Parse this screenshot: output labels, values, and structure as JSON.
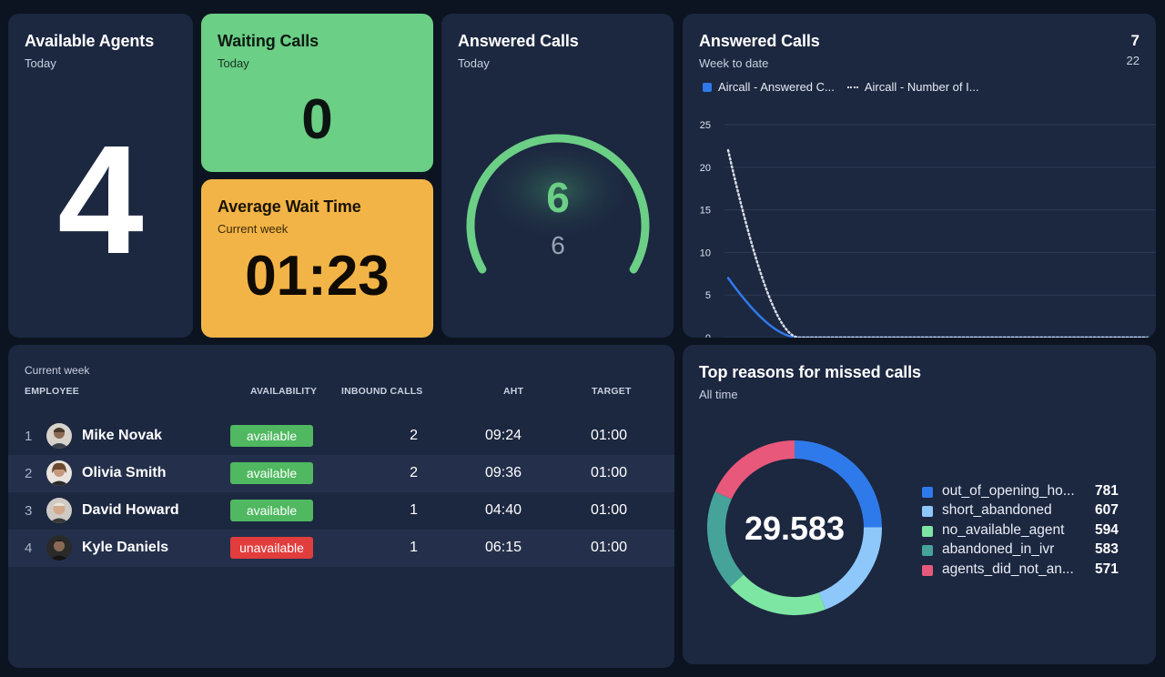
{
  "available_agents": {
    "title": "Available Agents",
    "subtitle": "Today",
    "value": "4"
  },
  "waiting_calls": {
    "title": "Waiting Calls",
    "subtitle": "Today",
    "value": "0",
    "bg_color": "#6bcf86"
  },
  "average_wait_time": {
    "title": "Average Wait Time",
    "subtitle": "Current week",
    "value": "01:23",
    "bg_color": "#f3b447"
  },
  "answered_today": {
    "title": "Answered Calls",
    "subtitle": "Today",
    "value": "6",
    "target": "6",
    "progress": 1.0,
    "color": "#6bcf86"
  },
  "answered_week": {
    "title": "Answered Calls",
    "subtitle": "Week to date",
    "primary_value": "7",
    "secondary_value": "22",
    "legend": [
      {
        "label": "Aircall - Answered C...",
        "style": "solid",
        "color": "#2f7aea"
      },
      {
        "label": "Aircall - Number of I...",
        "style": "dotted",
        "color": "#d8dce6"
      }
    ]
  },
  "chart_data": {
    "type": "line",
    "x": [
      0,
      1,
      2,
      3,
      4,
      5,
      6
    ],
    "ylim": [
      0,
      25
    ],
    "yticks": [
      "0",
      "5",
      "10",
      "15",
      "20",
      "25"
    ],
    "grid": true,
    "legend_placement": "top-left",
    "series": [
      {
        "name": "Aircall - Answered C...",
        "style": "solid",
        "color": "#2f7aea",
        "values": [
          7,
          0,
          0,
          0,
          0,
          0,
          0
        ]
      },
      {
        "name": "Aircall - Number of I...",
        "style": "dotted",
        "color": "#d8dce6",
        "values": [
          22,
          0,
          0,
          0,
          0,
          0,
          0
        ]
      }
    ]
  },
  "agent_table": {
    "period": "Current week",
    "headers": {
      "employee": "EMPLOYEE",
      "availability": "AVAILABILITY",
      "inbound": "INBOUND CALLS",
      "aht": "AHT",
      "target": "TARGET"
    },
    "rows": [
      {
        "index": "1",
        "name": "Mike Novak",
        "availability": "available",
        "status": "ok",
        "inbound": "2",
        "aht": "09:24",
        "target": "01:00"
      },
      {
        "index": "2",
        "name": "Olivia Smith",
        "availability": "available",
        "status": "ok",
        "inbound": "2",
        "aht": "09:36",
        "target": "01:00"
      },
      {
        "index": "3",
        "name": "David Howard",
        "availability": "available",
        "status": "ok",
        "inbound": "1",
        "aht": "04:40",
        "target": "01:00"
      },
      {
        "index": "4",
        "name": "Kyle Daniels",
        "availability": "unavailable",
        "status": "bad",
        "inbound": "1",
        "aht": "06:15",
        "target": "01:00"
      }
    ]
  },
  "missed_calls": {
    "title": "Top reasons for missed calls",
    "subtitle": "All time",
    "total": "29.583",
    "items": [
      {
        "label": "out_of_opening_ho...",
        "value": "781",
        "count": 781,
        "color": "#2f7aea"
      },
      {
        "label": "short_abandoned",
        "value": "607",
        "count": 607,
        "color": "#8ec8fb"
      },
      {
        "label": "no_available_agent",
        "value": "594",
        "count": 594,
        "color": "#7ee6a3"
      },
      {
        "label": "abandoned_in_ivr",
        "value": "583",
        "count": 583,
        "color": "#46a39a"
      },
      {
        "label": "agents_did_not_an...",
        "value": "571",
        "count": 571,
        "color": "#e7587a"
      }
    ]
  }
}
